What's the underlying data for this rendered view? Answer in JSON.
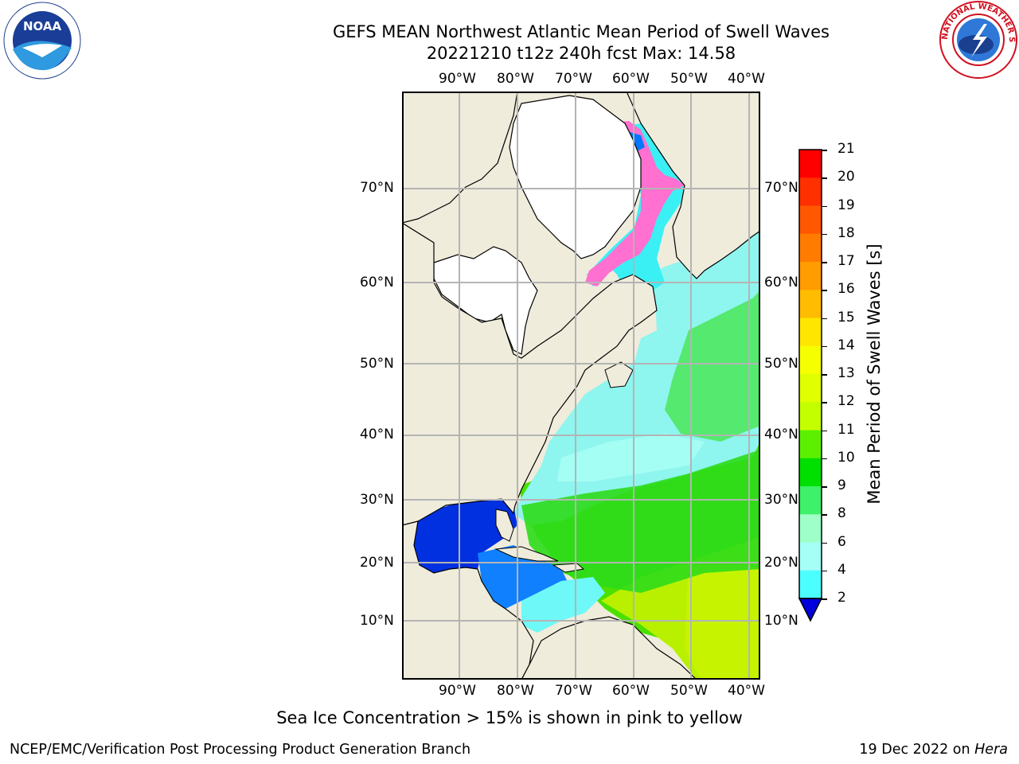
{
  "title_line1": "GEFS MEAN Northwest Atlantic Mean Period of Swell Waves",
  "title_line2": "20221210 t12z 240h fcst   Max: 14.58",
  "lon_labels": [
    "90°W",
    "80°W",
    "70°W",
    "60°W",
    "50°W",
    "40°W"
  ],
  "lat_labels": [
    "70°N",
    "60°N",
    "50°N",
    "40°N",
    "30°N",
    "20°N",
    "10°N"
  ],
  "colorbar": {
    "title": "Mean Period of Swell Waves [s]",
    "ticks": [
      "21",
      "20",
      "19",
      "18",
      "17",
      "16",
      "15",
      "14",
      "13",
      "12",
      "11",
      "10",
      "9",
      "8",
      "6",
      "4",
      "2"
    ],
    "colors": [
      "#ff0000",
      "#ff3000",
      "#ff5800",
      "#ff7c00",
      "#ff9c00",
      "#ffbc00",
      "#ffe600",
      "#f6ff00",
      "#e0ff00",
      "#c4ff00",
      "#5cf000",
      "#00e000",
      "#3ef06a",
      "#9fffc8",
      "#a6fff6",
      "#4cffff",
      "#00e8ff",
      "#0078ff",
      "#0000dd"
    ]
  },
  "note": "Sea Ice Concentration > 15% is shown in pink to yellow",
  "footer_left": "NCEP/EMC/Verification Post Processing Product Generation Branch",
  "footer_date": "19 Dec 2022 on ",
  "footer_host": "Hera",
  "logos": {
    "left": "NOAA",
    "right": "NATIONAL WEATHER SERVICE"
  }
}
